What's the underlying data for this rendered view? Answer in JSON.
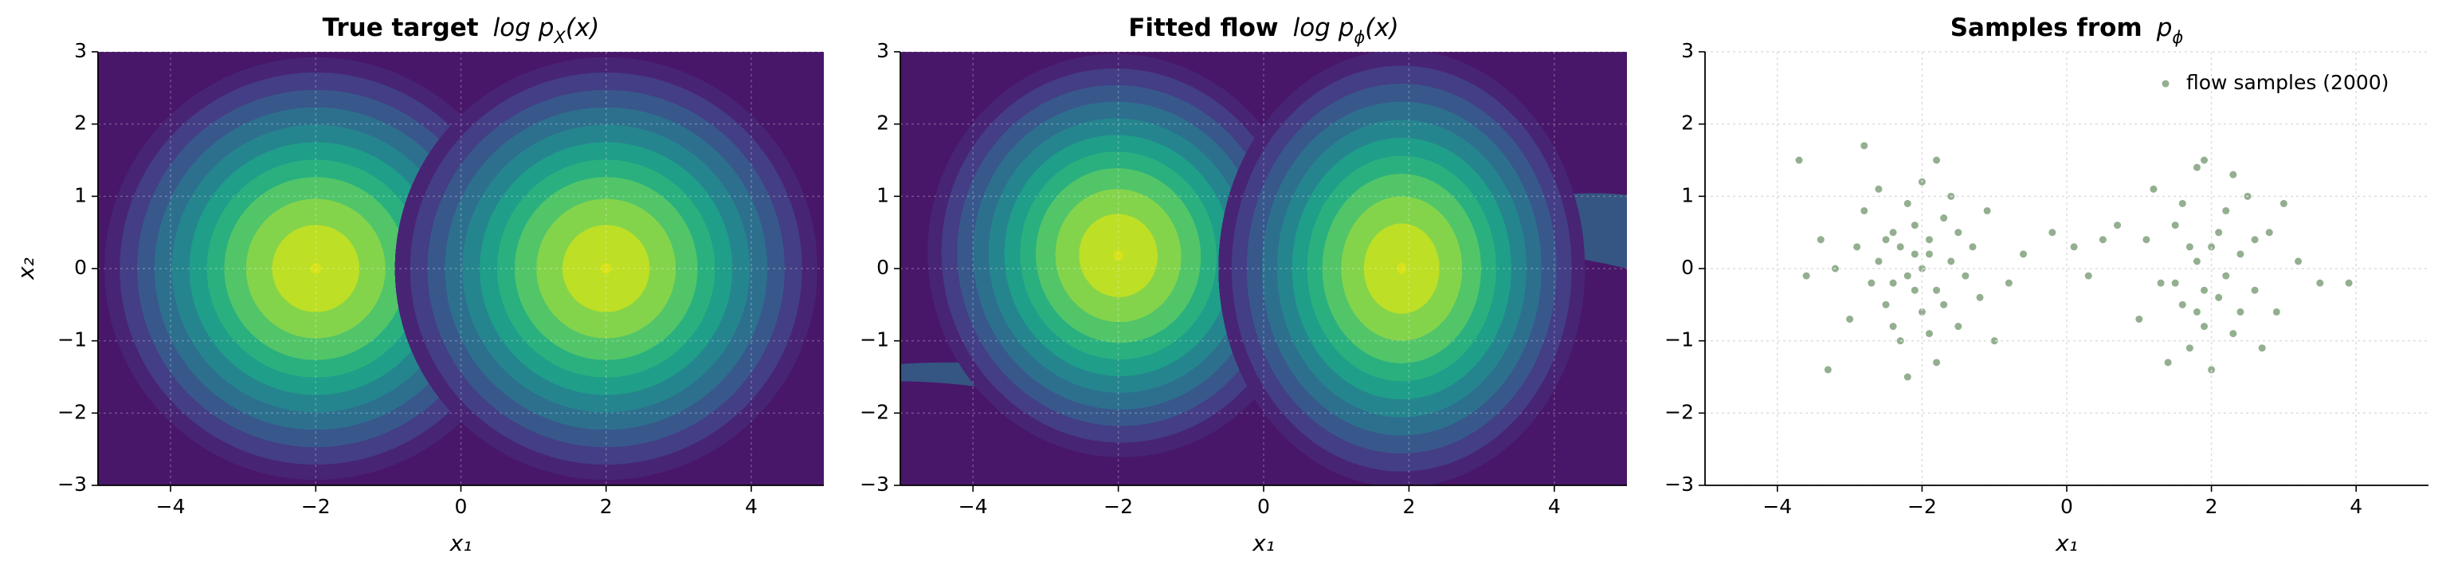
{
  "chart_data": [
    {
      "type": "contour",
      "title": "True target",
      "title_math": {
        "text": "log p",
        "sub": "X",
        "tail": "(x)"
      },
      "xlabel": "x₁",
      "ylabel": "x₂",
      "xlim": [
        -5,
        5
      ],
      "ylim": [
        -3,
        3
      ],
      "xticks": [
        {
          "value": -4,
          "label": "−4"
        },
        {
          "value": -2,
          "label": "−2"
        },
        0,
        2,
        4
      ],
      "yticks": [
        {
          "value": -3,
          "label": "−3"
        },
        {
          "value": -2,
          "label": "−2"
        },
        {
          "value": -1,
          "label": "−1"
        },
        0,
        1,
        2,
        3
      ],
      "grid": true
    },
    {
      "type": "contour",
      "title": "Fitted flow",
      "title_math": {
        "text": "log p",
        "sub": "ϕ",
        "tail": "(x)"
      },
      "xlabel": "x₁",
      "xlim": [
        -5,
        5
      ],
      "ylim": [
        -3,
        3
      ],
      "xticks": [
        {
          "value": -4,
          "label": "−4"
        },
        {
          "value": -2,
          "label": "−2"
        },
        0,
        2,
        4
      ],
      "yticks": [
        {
          "value": -3,
          "label": "−3"
        },
        {
          "value": -2,
          "label": "−2"
        },
        {
          "value": -1,
          "label": "−1"
        },
        0,
        1,
        2,
        3
      ],
      "grid": true
    },
    {
      "type": "scatter",
      "title": "Samples from",
      "title_math": {
        "text": "p",
        "sub": "ϕ"
      },
      "xlabel": "x₁",
      "xlim": [
        -5,
        5
      ],
      "ylim": [
        -3,
        3
      ],
      "xticks": [
        {
          "value": -4,
          "label": "−4"
        },
        {
          "value": -2,
          "label": "−2"
        },
        0,
        2,
        4
      ],
      "yticks": [
        {
          "value": -3,
          "label": "−3"
        },
        {
          "value": -2,
          "label": "−2"
        },
        {
          "value": -1,
          "label": "−1"
        },
        0,
        1,
        2,
        3
      ],
      "grid": true,
      "color": "#3b6e35",
      "legend": {
        "label": "flow samples (2000)",
        "loc": "upper right"
      },
      "x": [
        -2.1,
        -1.8,
        -2.4,
        -2.0,
        -1.6,
        -2.7,
        -2.2,
        -1.5,
        -2.9,
        -1.9,
        -2.3,
        -1.7,
        -2.5,
        -2.0,
        -1.3,
        -2.6,
        -1.8,
        -2.2,
        -3.2,
        -1.2,
        -2.1,
        -2.4,
        -1.6,
        -2.8,
        -1.9,
        -2.3,
        -1.4,
        -3.0,
        -2.0,
        -1.7,
        -2.6,
        -1.1,
        -2.2,
        -3.6,
        -3.7,
        -2.8,
        -1.8,
        -3.3,
        -1.0,
        -2.5,
        -1.5,
        -2.1,
        -3.4,
        -1.9,
        -2.4,
        -0.6,
        -0.2,
        0.3,
        0.5,
        -0.8,
        0.1,
        1.8,
        2.1,
        1.5,
        2.4,
        1.9,
        2.6,
        1.3,
        2.2,
        1.7,
        2.8,
        2.0,
        1.6,
        2.3,
        1.1,
        2.9,
        1.8,
        2.5,
        1.4,
        3.2,
        3.5,
        2.0,
        1.9,
        1.0,
        2.7,
        1.6,
        2.2,
        1.7,
        2.4,
        3.0,
        1.2,
        2.1,
        1.5,
        2.6,
        1.9,
        3.9,
        0.7,
        2.3,
        1.8
      ],
      "y": [
        0.2,
        -0.3,
        0.5,
        -0.6,
        0.1,
        -0.2,
        0.9,
        -0.8,
        0.3,
        0.4,
        -1.0,
        0.7,
        -0.5,
        1.2,
        0.3,
        0.1,
        -1.3,
        -0.1,
        0.0,
        -0.4,
        0.6,
        -0.8,
        1.0,
        0.8,
        -0.9,
        0.3,
        -0.1,
        -0.7,
        0.0,
        -0.5,
        1.1,
        0.8,
        -1.5,
        -0.1,
        1.5,
        1.7,
        1.5,
        -1.4,
        -1.0,
        0.4,
        0.5,
        -0.3,
        0.4,
        0.2,
        -0.2,
        0.2,
        0.5,
        -0.1,
        0.4,
        -0.2,
        0.3,
        0.1,
        -0.4,
        0.6,
        0.2,
        -0.8,
        -0.3,
        -0.2,
        0.8,
        -1.1,
        0.5,
        0.3,
        -0.5,
        -0.9,
        0.4,
        -0.6,
        1.4,
        1.0,
        -1.3,
        0.1,
        -0.2,
        -1.4,
        1.5,
        -0.7,
        -1.1,
        0.9,
        -0.1,
        0.3,
        -0.6,
        0.9,
        1.1,
        0.5,
        -0.2,
        0.4,
        -0.3,
        -0.2,
        0.6,
        1.3,
        -0.6
      ]
    }
  ]
}
